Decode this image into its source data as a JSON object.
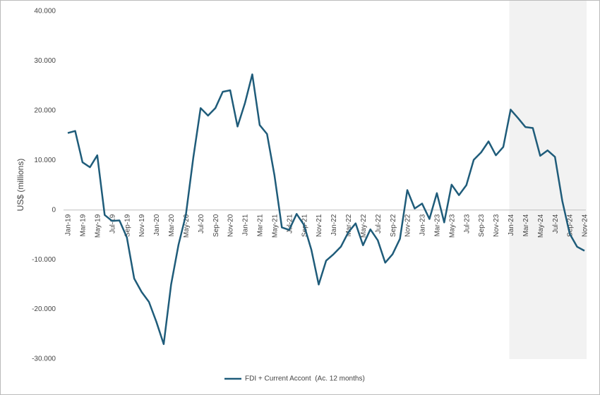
{
  "chart_data": {
    "type": "line",
    "y_label": "US$ (millions)",
    "categories": [
      "Jan-19",
      null,
      "Mar-19",
      null,
      "May-19",
      null,
      "Jul-19",
      null,
      "Sep-19",
      null,
      "Nov-19",
      null,
      "Jan-20",
      null,
      "Mar-20",
      null,
      "May-20",
      null,
      "Jul-20",
      null,
      "Sep-20",
      null,
      "Nov-20",
      null,
      "Jan-21",
      null,
      "Mar-21",
      null,
      "May-21",
      null,
      "Jul-21",
      null,
      "Sep-21",
      null,
      "Nov-21",
      null,
      "Jan-22",
      null,
      "Mar-22",
      null,
      "May-22",
      null,
      "Jul-22",
      null,
      "Sep-22",
      null,
      "Nov-22",
      null,
      "Jan-23",
      null,
      "Mar-23",
      null,
      "May-23",
      null,
      "Jul-23",
      null,
      "Sep-23",
      null,
      "Nov-23",
      null,
      "Jan-24",
      null,
      "Mar-24",
      null,
      "May-24",
      null,
      "Jul-24",
      null,
      "Sep-24",
      null,
      "Nov-24"
    ],
    "series": [
      {
        "name": "FDI + Current Accont  (Ac. 12 months)",
        "color": "#1f5c7a",
        "values": [
          15500,
          15900,
          9600,
          8600,
          11000,
          -1000,
          -2200,
          -2100,
          -5500,
          -13800,
          -16500,
          -18500,
          -22500,
          -27000,
          -15000,
          -7000,
          -1000,
          10500,
          20500,
          19000,
          20500,
          23800,
          24100,
          16800,
          21500,
          27300,
          17100,
          15300,
          7000,
          -3500,
          -4000,
          -800,
          -3000,
          -8000,
          -15000,
          -10200,
          -8900,
          -7400,
          -4500,
          -2700,
          -7100,
          -3900,
          -6100,
          -10600,
          -8900,
          -5800,
          4000,
          300,
          1300,
          -1800,
          3400,
          -2500,
          5100,
          3000,
          5000,
          10100,
          11600,
          13800,
          11000,
          12700,
          20200,
          18500,
          16700,
          16500,
          10900,
          12000,
          10700,
          1800,
          -4800,
          -7400,
          -8200
        ]
      }
    ],
    "ylim": [
      -30000,
      40000
    ],
    "yticks": [
      {
        "value": -30000,
        "label": "-30.000"
      },
      {
        "value": -20000,
        "label": "-20.000"
      },
      {
        "value": -10000,
        "label": "-10.000"
      },
      0,
      {
        "value": 10000,
        "label": "10.000"
      },
      {
        "value": 20000,
        "label": "20.000"
      },
      {
        "value": 30000,
        "label": "30.000"
      },
      {
        "value": 40000,
        "label": "40.000"
      }
    ],
    "grid": false,
    "shade_from": 60,
    "legend": "bottom"
  }
}
